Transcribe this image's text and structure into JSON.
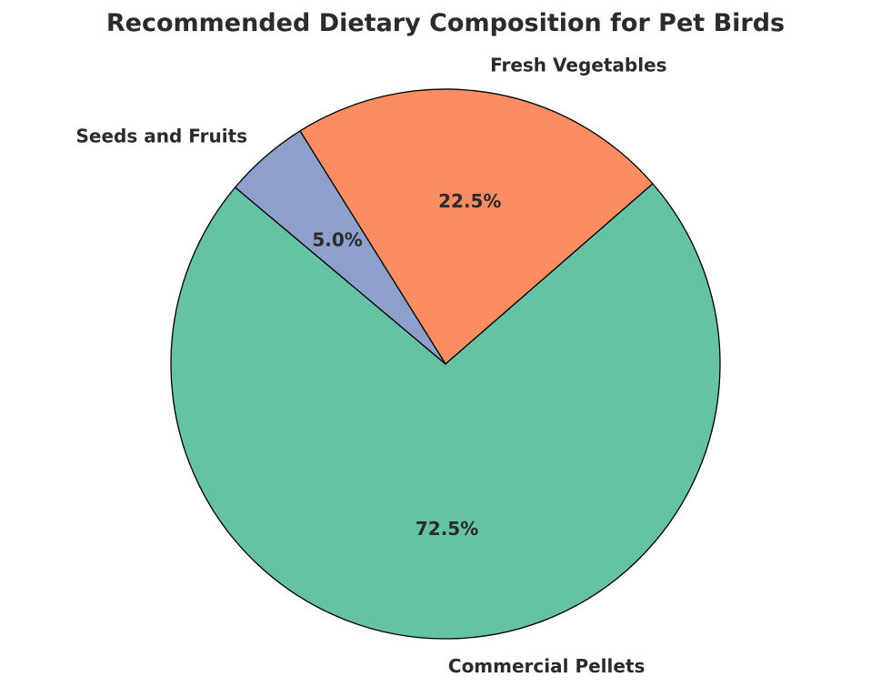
{
  "chart_data": {
    "type": "pie",
    "title": "Recommended Dietary Composition for Pet Birds",
    "categories": [
      "Commercial Pellets",
      "Fresh Vegetables",
      "Seeds and Fruits"
    ],
    "values": [
      72.5,
      22.5,
      5.0
    ],
    "value_labels": [
      "72.5%",
      "22.5%",
      "5.0%"
    ],
    "colors": [
      "#66c2a5",
      "#fc8d62",
      "#8da0cb"
    ],
    "start_angle_deg": 140,
    "direction": "counterclockwise",
    "legend": "none"
  }
}
